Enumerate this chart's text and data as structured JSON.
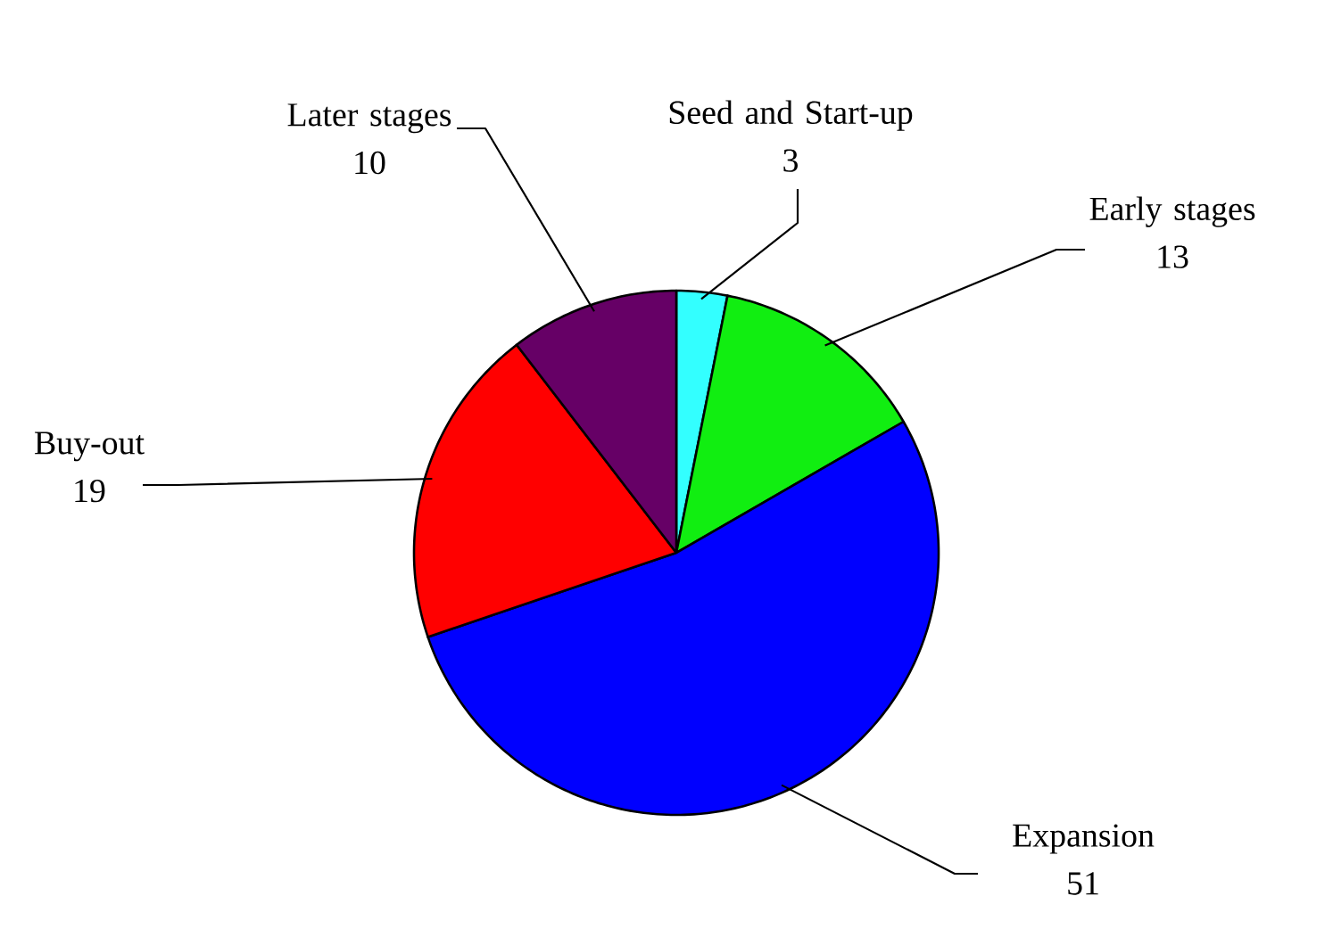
{
  "chart_data": {
    "type": "pie",
    "categories": [
      "Seed and Start-up",
      "Early stages",
      "Expansion",
      "Buy-out",
      "Later stages"
    ],
    "values": [
      3,
      13,
      51,
      19,
      10
    ],
    "colors": [
      "#33ffff",
      "#11ee11",
      "#0000ff",
      "#ff0000",
      "#660066"
    ],
    "data_labels": true
  }
}
